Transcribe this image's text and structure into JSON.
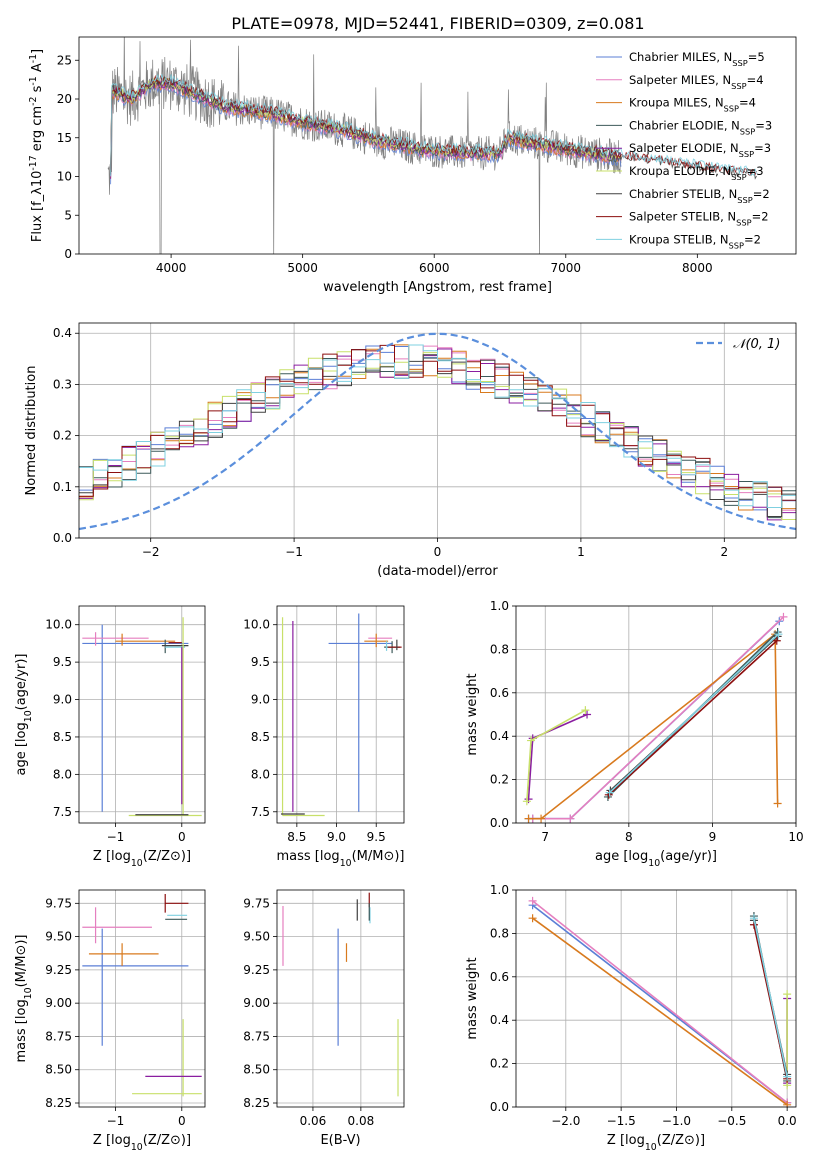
{
  "figure": {
    "title": "PLATE=0978, MJD=52441, FIBERID=0309, z=0.081"
  },
  "colors": {
    "chabrier_miles": "#5b7fd6",
    "salpeter_miles": "#e57fbf",
    "kroupa_miles": "#d87a1e",
    "chabrier_elodie": "#3d5a5a",
    "salpeter_elodie": "#8a1ea0",
    "kroupa_elodie": "#c8e06a",
    "chabrier_stelib": "#404040",
    "salpeter_stelib": "#8c0e0e",
    "kroupa_stelib": "#7fd0e0",
    "data_gray": "#808080",
    "normal_curve": "#5b8fdc"
  },
  "chart_data": [
    {
      "id": "spectrum",
      "type": "line",
      "xlabel": "wavelength [Angstrom, rest frame]",
      "ylabel": "Flux [f_λ10^-17 erg cm^-2 s^-1 A^-1]",
      "xlim": [
        3300,
        8750
      ],
      "ylim": [
        0,
        28
      ],
      "xticks": [
        4000,
        5000,
        6000,
        7000,
        8000
      ],
      "yticks": [
        0,
        5,
        10,
        15,
        20,
        25
      ],
      "grid": false,
      "legend_position": "top-right",
      "legend": [
        "Chabrier MILES, N_SSP=5",
        "Salpeter MILES, N_SSP=4",
        "Kroupa MILES, N_SSP=4",
        "Chabrier ELODIE, N_SSP=3",
        "Salpeter ELODIE, N_SSP=3",
        "Kroupa ELODIE, N_SSP=3",
        "Chabrier STELIB, N_SSP=2",
        "Salpeter STELIB, N_SSP=2",
        "Kroupa STELIB, N_SSP=2"
      ],
      "model_continuum": {
        "x": [
          3550,
          3700,
          3850,
          4000,
          4200,
          4400,
          4600,
          4800,
          5000,
          5300,
          5600,
          5900,
          6200,
          6500,
          6560,
          6700,
          7000,
          7400,
          7800,
          8200,
          8450
        ],
        "y": [
          21,
          20,
          22,
          22,
          20.5,
          19,
          18.5,
          18,
          17,
          16,
          14.5,
          13.5,
          13,
          13,
          15,
          14.5,
          13.5,
          12.5,
          11.5,
          10.5,
          10
        ]
      }
    },
    {
      "id": "residuals",
      "type": "step",
      "xlabel": "(data-model)/error",
      "ylabel": "Normed distribution",
      "xlim": [
        -2.5,
        2.5
      ],
      "ylim": [
        0,
        0.42
      ],
      "xticks": [
        -2,
        -1,
        0,
        1,
        2
      ],
      "yticks": [
        0.0,
        0.1,
        0.2,
        0.3,
        0.4
      ],
      "grid": true,
      "legend_position": "top-right",
      "legend": [
        "𝒩(0, 1)"
      ],
      "normal": {
        "mean": 0,
        "sigma": 1
      }
    },
    {
      "id": "age-vs-Z",
      "type": "errorbar",
      "xlabel": "Z [log10(Z/Z⊙)]",
      "ylabel": "age  [log10(age/yr)]",
      "xlim": [
        -1.55,
        0.35
      ],
      "ylim": [
        7.35,
        10.25
      ],
      "xticks": [
        -1,
        0
      ],
      "yticks": [
        7.5,
        8.0,
        8.5,
        9.0,
        9.5,
        10.0
      ],
      "grid": true,
      "segments": [
        {
          "s": "chabrier_miles",
          "x1": -1.2,
          "y1": 7.5,
          "x2": -1.2,
          "y2": 10.0
        },
        {
          "s": "chabrier_miles",
          "x1": -1.5,
          "y1": 9.75,
          "x2": 0.1,
          "y2": 9.75
        },
        {
          "s": "salpeter_miles",
          "x1": -1.5,
          "y1": 9.82,
          "x2": -0.5,
          "y2": 9.82
        },
        {
          "s": "salpeter_miles",
          "x1": -1.3,
          "y1": 9.72,
          "x2": -1.3,
          "y2": 9.9
        },
        {
          "s": "kroupa_miles",
          "x1": -1.0,
          "y1": 9.78,
          "x2": -0.1,
          "y2": 9.78
        },
        {
          "s": "kroupa_miles",
          "x1": -0.9,
          "y1": 9.72,
          "x2": -0.9,
          "y2": 9.88
        },
        {
          "s": "chabrier_elodie",
          "x1": -0.25,
          "y1": 9.62,
          "x2": -0.25,
          "y2": 9.8
        },
        {
          "s": "chabrier_stelib",
          "x1": -0.3,
          "y1": 9.72,
          "x2": 0.1,
          "y2": 9.72
        },
        {
          "s": "salpeter_stelib",
          "x1": -0.2,
          "y1": 9.76,
          "x2": 0.0,
          "y2": 9.76
        },
        {
          "s": "kroupa_stelib",
          "x1": -0.25,
          "y1": 9.7,
          "x2": 0.05,
          "y2": 9.7
        },
        {
          "s": "kroupa_elodie",
          "x1": 0.02,
          "y1": 7.45,
          "x2": 0.02,
          "y2": 10.1
        },
        {
          "s": "kroupa_elodie",
          "x1": -0.8,
          "y1": 7.45,
          "x2": 0.3,
          "y2": 7.45
        },
        {
          "s": "salpeter_elodie",
          "x1": 0.0,
          "y1": 7.6,
          "x2": 0.0,
          "y2": 9.7
        },
        {
          "s": "chabrier_stelib",
          "x1": -0.7,
          "y1": 7.46,
          "x2": 0.1,
          "y2": 7.46
        }
      ]
    },
    {
      "id": "age-vs-mass",
      "type": "errorbar",
      "xlabel": "mass [log10(M/M⊙)]",
      "ylabel": "",
      "xlim": [
        8.25,
        9.85
      ],
      "ylim": [
        7.35,
        10.25
      ],
      "xticks": [
        8.5,
        9.0,
        9.5
      ],
      "yticks": [
        7.5,
        8.0,
        8.5,
        9.0,
        9.5,
        10.0
      ],
      "grid": true,
      "segments": [
        {
          "s": "kroupa_elodie",
          "x1": 8.32,
          "y1": 7.45,
          "x2": 8.32,
          "y2": 10.1
        },
        {
          "s": "salpeter_elodie",
          "x1": 8.45,
          "y1": 7.5,
          "x2": 8.45,
          "y2": 10.05
        },
        {
          "s": "kroupa_elodie",
          "x1": 8.32,
          "y1": 7.45,
          "x2": 8.85,
          "y2": 7.45
        },
        {
          "s": "chabrier_stelib",
          "x1": 8.3,
          "y1": 7.47,
          "x2": 8.6,
          "y2": 7.47
        },
        {
          "s": "chabrier_miles",
          "x1": 9.28,
          "y1": 7.5,
          "x2": 9.28,
          "y2": 10.15
        },
        {
          "s": "chabrier_miles",
          "x1": 8.9,
          "y1": 9.75,
          "x2": 9.7,
          "y2": 9.75
        },
        {
          "s": "salpeter_miles",
          "x1": 9.4,
          "y1": 9.82,
          "x2": 9.7,
          "y2": 9.82
        },
        {
          "s": "kroupa_miles",
          "x1": 9.35,
          "y1": 9.78,
          "x2": 9.65,
          "y2": 9.78
        },
        {
          "s": "kroupa_miles",
          "x1": 9.5,
          "y1": 9.7,
          "x2": 9.5,
          "y2": 9.88
        },
        {
          "s": "chabrier_elodie",
          "x1": 9.6,
          "y1": 9.7,
          "x2": 9.8,
          "y2": 9.7
        },
        {
          "s": "chabrier_elodie",
          "x1": 9.7,
          "y1": 9.62,
          "x2": 9.7,
          "y2": 9.78
        },
        {
          "s": "salpeter_stelib",
          "x1": 9.65,
          "y1": 9.7,
          "x2": 9.82,
          "y2": 9.7
        },
        {
          "s": "kroupa_stelib",
          "x1": 9.63,
          "y1": 9.65,
          "x2": 9.63,
          "y2": 9.78
        },
        {
          "s": "chabrier_stelib",
          "x1": 9.76,
          "y1": 9.66,
          "x2": 9.76,
          "y2": 9.8
        }
      ]
    },
    {
      "id": "weight-vs-age",
      "type": "line",
      "xlabel": "age  [log10(age/yr)]",
      "ylabel": "mass weight",
      "xlim": [
        6.65,
        10.0
      ],
      "ylim": [
        0.0,
        1.0
      ],
      "xticks": [
        7,
        8,
        9,
        10
      ],
      "yticks": [
        0.0,
        0.2,
        0.4,
        0.6,
        0.8,
        1.0
      ],
      "grid": true,
      "series": [
        {
          "s": "chabrier_miles",
          "x": [
            6.8,
            6.85,
            7.3,
            9.8
          ],
          "y": [
            0.02,
            0.02,
            0.02,
            0.93
          ]
        },
        {
          "s": "salpeter_miles",
          "x": [
            6.85,
            7.3,
            9.85
          ],
          "y": [
            0.02,
            0.02,
            0.95
          ]
        },
        {
          "s": "kroupa_miles",
          "x": [
            6.8,
            6.95,
            9.75,
            9.78
          ],
          "y": [
            0.02,
            0.02,
            0.87,
            0.09
          ]
        },
        {
          "s": "chabrier_elodie",
          "x": [
            7.75,
            9.78
          ],
          "y": [
            0.12,
            0.88
          ]
        },
        {
          "s": "salpeter_elodie",
          "x": [
            6.8,
            6.85,
            7.5
          ],
          "y": [
            0.11,
            0.39,
            0.5
          ]
        },
        {
          "s": "kroupa_elodie",
          "x": [
            6.78,
            6.83,
            7.48
          ],
          "y": [
            0.1,
            0.38,
            0.52
          ]
        },
        {
          "s": "chabrier_stelib",
          "x": [
            7.78,
            9.78
          ],
          "y": [
            0.15,
            0.86
          ]
        },
        {
          "s": "salpeter_stelib",
          "x": [
            7.76,
            9.77
          ],
          "y": [
            0.13,
            0.84
          ]
        },
        {
          "s": "kroupa_stelib",
          "x": [
            7.77,
            9.79
          ],
          "y": [
            0.14,
            0.87
          ]
        }
      ]
    },
    {
      "id": "mass-vs-Z",
      "type": "errorbar",
      "xlabel": "Z [log10(Z/Z⊙)]",
      "ylabel": "mass [log10(M/M⊙)]",
      "xlim": [
        -1.55,
        0.35
      ],
      "ylim": [
        8.22,
        9.85
      ],
      "xticks": [
        -1,
        0
      ],
      "yticks": [
        8.25,
        8.5,
        8.75,
        9.0,
        9.25,
        9.5,
        9.75
      ],
      "grid": true,
      "segments": [
        {
          "s": "chabrier_miles",
          "x1": -1.5,
          "y1": 9.28,
          "x2": 0.1,
          "y2": 9.28
        },
        {
          "s": "chabrier_miles",
          "x1": -1.2,
          "y1": 8.68,
          "x2": -1.2,
          "y2": 9.56
        },
        {
          "s": "salpeter_miles",
          "x1": -1.5,
          "y1": 9.57,
          "x2": -0.45,
          "y2": 9.57
        },
        {
          "s": "salpeter_miles",
          "x1": -1.3,
          "y1": 9.45,
          "x2": -1.3,
          "y2": 9.72
        },
        {
          "s": "kroupa_miles",
          "x1": -1.4,
          "y1": 9.37,
          "x2": -0.35,
          "y2": 9.37
        },
        {
          "s": "kroupa_miles",
          "x1": -0.9,
          "y1": 9.28,
          "x2": -0.9,
          "y2": 9.45
        },
        {
          "s": "salpeter_stelib",
          "x1": -0.25,
          "y1": 9.75,
          "x2": 0.1,
          "y2": 9.75
        },
        {
          "s": "salpeter_stelib",
          "x1": -0.25,
          "y1": 9.68,
          "x2": -0.25,
          "y2": 9.82
        },
        {
          "s": "chabrier_elodie",
          "x1": -0.25,
          "y1": 9.63,
          "x2": 0.08,
          "y2": 9.63
        },
        {
          "s": "kroupa_stelib",
          "x1": -0.22,
          "y1": 9.66,
          "x2": 0.08,
          "y2": 9.66
        },
        {
          "s": "kroupa_elodie",
          "x1": 0.02,
          "y1": 8.3,
          "x2": 0.02,
          "y2": 8.88
        },
        {
          "s": "kroupa_elodie",
          "x1": -0.75,
          "y1": 8.32,
          "x2": 0.3,
          "y2": 8.32
        },
        {
          "s": "salpeter_elodie",
          "x1": -0.55,
          "y1": 8.45,
          "x2": 0.3,
          "y2": 8.45
        }
      ]
    },
    {
      "id": "mass-vs-ebv",
      "type": "errorbar",
      "xlabel": "E(B-V)",
      "ylabel": "",
      "xlim": [
        0.045,
        0.098
      ],
      "ylim": [
        8.22,
        9.85
      ],
      "xticks": [
        0.06,
        0.08
      ],
      "yticks": [
        8.25,
        8.5,
        8.75,
        9.0,
        9.25,
        9.5,
        9.75
      ],
      "grid": true,
      "segments": [
        {
          "s": "salpeter_miles",
          "x1": 0.0475,
          "y1": 9.28,
          "x2": 0.0475,
          "y2": 9.73
        },
        {
          "s": "chabrier_miles",
          "x1": 0.0705,
          "y1": 8.68,
          "x2": 0.0705,
          "y2": 9.56
        },
        {
          "s": "kroupa_miles",
          "x1": 0.074,
          "y1": 9.31,
          "x2": 0.074,
          "y2": 9.45
        },
        {
          "s": "chabrier_stelib",
          "x1": 0.0785,
          "y1": 9.62,
          "x2": 0.0785,
          "y2": 9.78
        },
        {
          "s": "salpeter_stelib",
          "x1": 0.0835,
          "y1": 9.72,
          "x2": 0.0835,
          "y2": 9.83
        },
        {
          "s": "kroupa_stelib",
          "x1": 0.0838,
          "y1": 9.6,
          "x2": 0.0838,
          "y2": 9.72
        },
        {
          "s": "kroupa_elodie",
          "x1": 0.0955,
          "y1": 8.3,
          "x2": 0.0955,
          "y2": 8.88
        },
        {
          "s": "chabrier_elodie",
          "x1": 0.0835,
          "y1": 9.62,
          "x2": 0.0835,
          "y2": 9.75
        }
      ]
    },
    {
      "id": "weight-vs-Z",
      "type": "line",
      "xlabel": "Z [log10(Z/Z⊙)]",
      "ylabel": "mass weight",
      "xlim": [
        -2.45,
        0.08
      ],
      "ylim": [
        0.0,
        1.0
      ],
      "xticks": [
        -2.0,
        -1.5,
        -1.0,
        -0.5,
        0.0
      ],
      "yticks": [
        0.0,
        0.2,
        0.4,
        0.6,
        0.8,
        1.0
      ],
      "grid": true,
      "series": [
        {
          "s": "chabrier_miles",
          "x": [
            -2.3,
            0.0
          ],
          "y": [
            0.93,
            0.02
          ]
        },
        {
          "s": "salpeter_miles",
          "x": [
            -2.3,
            0.0
          ],
          "y": [
            0.95,
            0.02
          ]
        },
        {
          "s": "kroupa_miles",
          "x": [
            -2.3,
            0.0
          ],
          "y": [
            0.87,
            0.01
          ]
        },
        {
          "s": "chabrier_elodie",
          "x": [
            -0.3,
            0.0
          ],
          "y": [
            0.88,
            0.12
          ]
        },
        {
          "s": "salpeter_elodie",
          "x": [
            0.0,
            0.0
          ],
          "y": [
            0.11,
            0.5
          ]
        },
        {
          "s": "kroupa_elodie",
          "x": [
            0.0,
            0.0
          ],
          "y": [
            0.1,
            0.52
          ]
        },
        {
          "s": "chabrier_stelib",
          "x": [
            -0.3,
            0.0
          ],
          "y": [
            0.86,
            0.15
          ]
        },
        {
          "s": "salpeter_stelib",
          "x": [
            -0.3,
            0.0
          ],
          "y": [
            0.84,
            0.13
          ]
        },
        {
          "s": "kroupa_stelib",
          "x": [
            -0.3,
            0.0
          ],
          "y": [
            0.87,
            0.14
          ]
        }
      ]
    }
  ]
}
